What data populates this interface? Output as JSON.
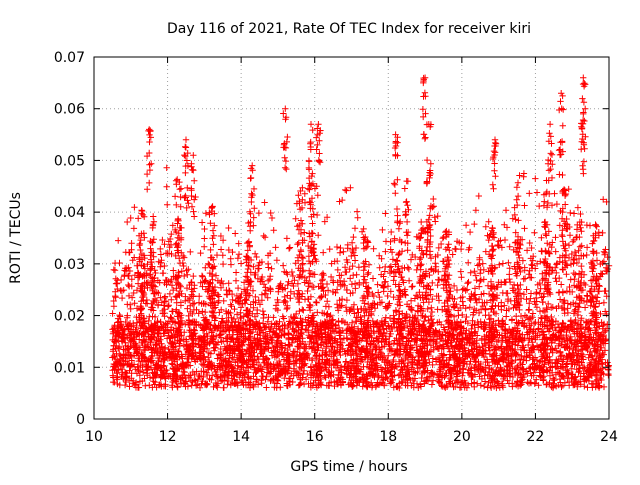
{
  "chart_data": {
    "type": "scatter",
    "title": "Day 116 of 2021, Rate Of TEC Index for receiver kiri",
    "xlabel": "GPS time / hours",
    "ylabel": "ROTI / TECUs",
    "xlim": [
      10,
      24
    ],
    "ylim": [
      0,
      0.07
    ],
    "xticks": [
      10,
      12,
      14,
      16,
      18,
      20,
      22,
      24
    ],
    "xtick_labels": [
      "10",
      "12",
      "14",
      "16",
      "18",
      "20",
      "22",
      "24"
    ],
    "yticks": [
      0,
      0.01,
      0.02,
      0.03,
      0.04,
      0.05,
      0.06,
      0.07
    ],
    "ytick_labels": [
      "0",
      "0.01",
      "0.02",
      "0.03",
      "0.04",
      "0.05",
      "0.06",
      "0.07"
    ],
    "grid": true,
    "marker": "+",
    "series": [
      {
        "name": "ROTI",
        "color": "#ff0000",
        "x_start": 10.5,
        "x_end": 24.0,
        "baseline_range": [
          0.005,
          0.03
        ],
        "peaks": [
          {
            "x": 11.5,
            "y": 0.056
          },
          {
            "x": 12.5,
            "y": 0.054
          },
          {
            "x": 12.7,
            "y": 0.051
          },
          {
            "x": 14.3,
            "y": 0.049
          },
          {
            "x": 15.2,
            "y": 0.06
          },
          {
            "x": 15.9,
            "y": 0.057
          },
          {
            "x": 16.1,
            "y": 0.057
          },
          {
            "x": 18.2,
            "y": 0.055
          },
          {
            "x": 18.5,
            "y": 0.046
          },
          {
            "x": 19.0,
            "y": 0.066
          },
          {
            "x": 19.1,
            "y": 0.057
          },
          {
            "x": 20.9,
            "y": 0.054
          },
          {
            "x": 22.4,
            "y": 0.057
          },
          {
            "x": 22.7,
            "y": 0.063
          },
          {
            "x": 23.3,
            "y": 0.066
          },
          {
            "x": 23.3,
            "y": 0.059
          }
        ]
      }
    ]
  }
}
